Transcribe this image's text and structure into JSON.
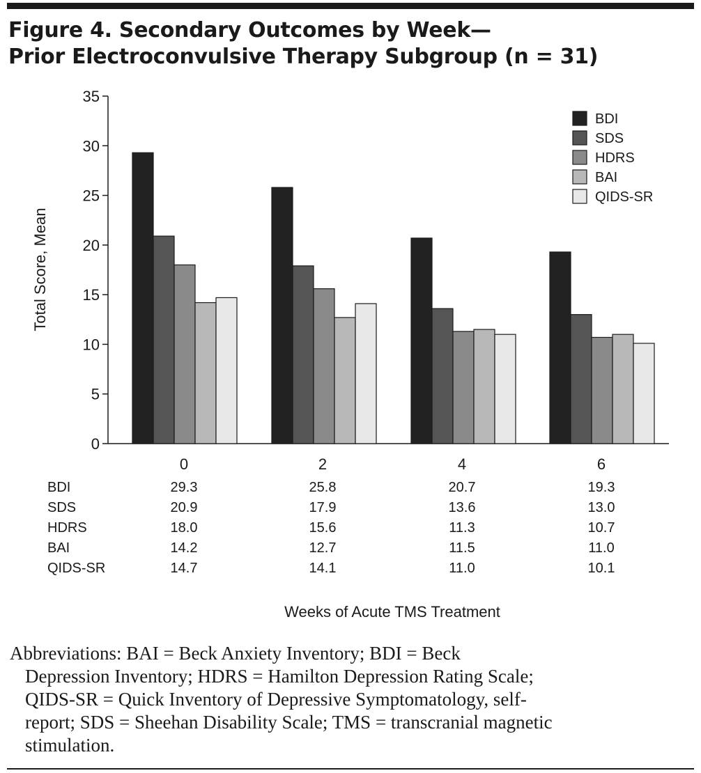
{
  "figure": {
    "title_line_1": "Figure 4. Secondary Outcomes by Week—",
    "title_line_2": "Prior Electroconvulsive Therapy Subgroup (n = 31)"
  },
  "chart_data": {
    "type": "bar",
    "title": "Figure 4. Secondary Outcomes by Week— Prior Electroconvulsive Therapy Subgroup (n = 31)",
    "xlabel": "Weeks of Acute TMS Treatment",
    "ylabel": "Total Score, Mean",
    "ylim": [
      0,
      35
    ],
    "yticks": [
      0,
      5,
      10,
      15,
      20,
      25,
      30,
      35
    ],
    "categories": [
      "0",
      "2",
      "4",
      "6"
    ],
    "grid": false,
    "legend_position": "top-right",
    "series": [
      {
        "name": "BDI",
        "color": "#222222",
        "values": [
          29.3,
          25.8,
          20.7,
          19.3
        ]
      },
      {
        "name": "SDS",
        "color": "#555555",
        "values": [
          20.9,
          17.9,
          13.6,
          13.0
        ]
      },
      {
        "name": "HDRS",
        "color": "#8a8a8a",
        "values": [
          18.0,
          15.6,
          11.3,
          10.7
        ]
      },
      {
        "name": "BAI",
        "color": "#b8b8b8",
        "values": [
          14.2,
          12.7,
          11.5,
          11.0
        ]
      },
      {
        "name": "QIDS-SR",
        "color": "#e8e8e8",
        "values": [
          14.7,
          14.1,
          11.0,
          10.1
        ]
      }
    ],
    "table": {
      "rows": [
        {
          "label": "BDI",
          "values": [
            "29.3",
            "25.8",
            "20.7",
            "19.3"
          ]
        },
        {
          "label": "SDS",
          "values": [
            "20.9",
            "17.9",
            "13.6",
            "13.0"
          ]
        },
        {
          "label": "HDRS",
          "values": [
            "18.0",
            "15.6",
            "11.3",
            "10.7"
          ]
        },
        {
          "label": "BAI",
          "values": [
            "14.2",
            "12.7",
            "11.5",
            "11.0"
          ]
        },
        {
          "label": "QIDS-SR",
          "values": [
            "14.7",
            "14.1",
            "11.0",
            "10.1"
          ]
        }
      ]
    }
  },
  "footnote": {
    "lines": [
      "Abbreviations: BAI = Beck Anxiety Inventory; BDI = Beck",
      "Depression Inventory; HDRS = Hamilton Depression Rating Scale;",
      "QIDS-SR = Quick Inventory of Depressive Symptomatology, self-",
      "report; SDS = Sheehan Disability Scale; TMS = transcranial magnetic",
      "stimulation."
    ]
  }
}
